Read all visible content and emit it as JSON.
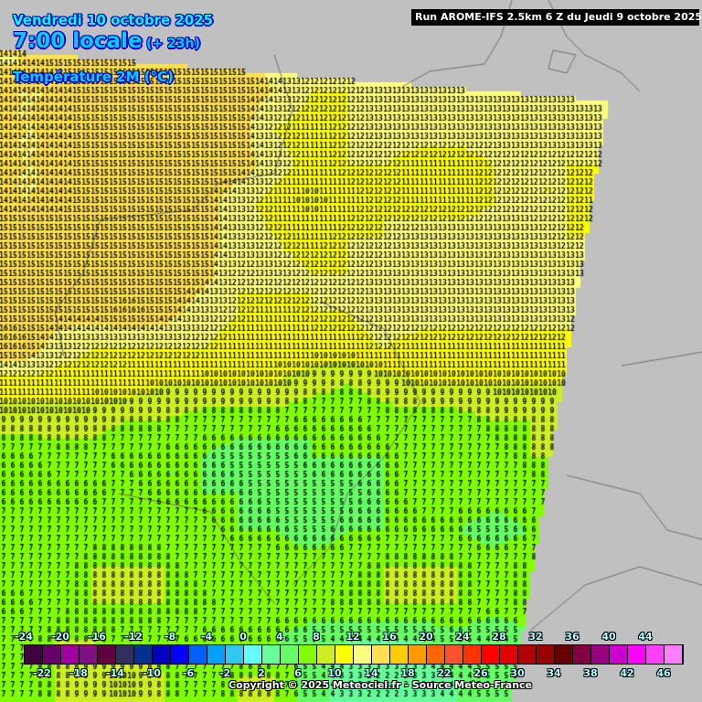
{
  "header": {
    "date": "Vendredi 10 octobre 2025",
    "time": "7:00 locale",
    "lead": "(+ 23h)",
    "parameter": "Température 2M (°C)",
    "run": "Run AROME-IFS 2.5km 6 Z du Jeudi 9 octobre 2025"
  },
  "legend": {
    "values_top": [
      -24,
      -20,
      -16,
      -12,
      -8,
      -4,
      0,
      4,
      8,
      12,
      16,
      20,
      24,
      28,
      32,
      36,
      40,
      44
    ],
    "values_bottom": [
      -22,
      -18,
      -14,
      -10,
      -6,
      -2,
      2,
      6,
      10,
      14,
      18,
      22,
      26,
      30,
      34,
      38,
      42,
      46
    ],
    "colors": [
      "#3f0040",
      "#660066",
      "#a000a0",
      "#801080",
      "#600040",
      "#303060",
      "#003090",
      "#0000c0",
      "#0000ff",
      "#0060ff",
      "#00a0ff",
      "#30c8f0",
      "#66ffff",
      "#66ff99",
      "#66ff66",
      "#80ff00",
      "#ccee22",
      "#ffff00",
      "#ffff80",
      "#ffe050",
      "#ffcc00",
      "#ff9900",
      "#ff6600",
      "#ff5030",
      "#ff3300",
      "#ff0000",
      "#e00000",
      "#b00000",
      "#990000",
      "#660000",
      "#800040",
      "#990080",
      "#cc00cc",
      "#ff00ff",
      "#ff40ff",
      "#ff80ff"
    ]
  },
  "map": {
    "unit": "°C",
    "land_color": "#c0c0c0",
    "temperature_field": [
      [
        14,
        15,
        15,
        15,
        15,
        15,
        15,
        13,
        12,
        12,
        13,
        13,
        13,
        13,
        13,
        13,
        13
      ],
      [
        14,
        14,
        15,
        15,
        15,
        15,
        15,
        14,
        12,
        12,
        13,
        13,
        13,
        13,
        13,
        13,
        13
      ],
      [
        14,
        14,
        15,
        15,
        15,
        15,
        15,
        12,
        11,
        12,
        13,
        13,
        13,
        13,
        13,
        13,
        13
      ],
      [
        14,
        14,
        15,
        15,
        15,
        15,
        15,
        13,
        11,
        12,
        12,
        11,
        11,
        12,
        12,
        12,
        12
      ],
      [
        14,
        14,
        15,
        15,
        15,
        15,
        13,
        11,
        10,
        11,
        12,
        11,
        11,
        12,
        12,
        12,
        11
      ],
      [
        15,
        15,
        15,
        15,
        15,
        15,
        13,
        12,
        11,
        12,
        12,
        13,
        13,
        13,
        13,
        12,
        12
      ],
      [
        15,
        15,
        15,
        15,
        15,
        15,
        12,
        13,
        12,
        12,
        13,
        13,
        13,
        13,
        13,
        13,
        13
      ],
      [
        15,
        15,
        15,
        16,
        15,
        13,
        12,
        11,
        12,
        12,
        13,
        13,
        13,
        13,
        13,
        13,
        12
      ],
      [
        16,
        13,
        12,
        12,
        12,
        12,
        11,
        11,
        11,
        11,
        12,
        11,
        11,
        11,
        11,
        11,
        11
      ],
      [
        11,
        11,
        11,
        11,
        10,
        10,
        10,
        10,
        9,
        8,
        9,
        10,
        10,
        10,
        10,
        10,
        10
      ],
      [
        9,
        9,
        9,
        8,
        8,
        7,
        7,
        7,
        6,
        6,
        7,
        7,
        7,
        8,
        8,
        8,
        8
      ],
      [
        6,
        7,
        7,
        6,
        6,
        6,
        5,
        5,
        6,
        6,
        6,
        7,
        7,
        7,
        8,
        8,
        8
      ],
      [
        6,
        6,
        6,
        7,
        6,
        6,
        6,
        5,
        5,
        5,
        6,
        7,
        7,
        7,
        7,
        7,
        7
      ],
      [
        7,
        7,
        7,
        7,
        7,
        7,
        6,
        6,
        5,
        6,
        6,
        6,
        6,
        5,
        6,
        6,
        6
      ],
      [
        7,
        7,
        8,
        8,
        8,
        7,
        7,
        7,
        7,
        7,
        8,
        8,
        8,
        7,
        8,
        8,
        8
      ],
      [
        6,
        7,
        8,
        8,
        8,
        8,
        7,
        7,
        7,
        8,
        8,
        8,
        8,
        7,
        8,
        7,
        7
      ],
      [
        7,
        8,
        8,
        7,
        7,
        6,
        6,
        6,
        5,
        4,
        4,
        4,
        5,
        4,
        5,
        5,
        5
      ],
      [
        7,
        8,
        9,
        10,
        8,
        7,
        8,
        8,
        5,
        3,
        2,
        3,
        4,
        5,
        5,
        5,
        5
      ]
    ]
  },
  "footer": {
    "copyright": "Copyright © 2025 Meteociel.fr - Source Meteo-France"
  }
}
